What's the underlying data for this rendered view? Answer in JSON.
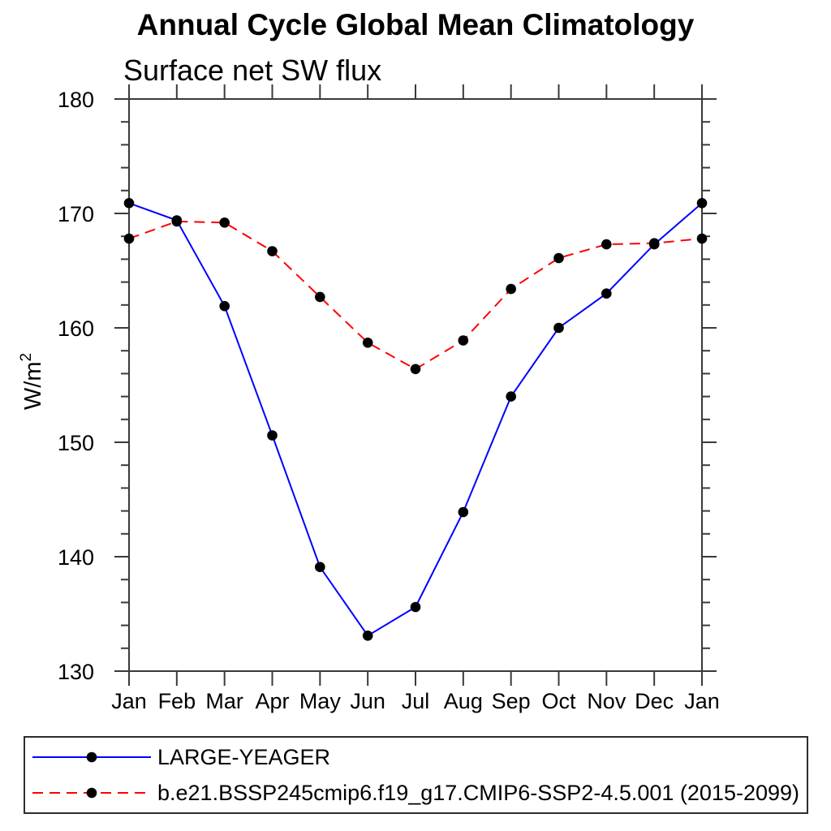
{
  "title": "Annual Cycle Global Mean Climatology",
  "subtitle": "Surface net SW flux",
  "chart_data": {
    "type": "line",
    "title": "Annual Cycle Global Mean Climatology",
    "subtitle": "Surface net SW flux",
    "x": [
      "Jan",
      "Feb",
      "Mar",
      "Apr",
      "May",
      "Jun",
      "Jul",
      "Aug",
      "Sep",
      "Oct",
      "Nov",
      "Dec",
      "Jan"
    ],
    "xlabel": "",
    "ylabel": {
      "base": "W/m",
      "exp": "2"
    },
    "ylim": [
      130,
      180
    ],
    "y_major_ticks": [
      130,
      140,
      150,
      160,
      170,
      180
    ],
    "y_minor_step": 2,
    "grid": false,
    "legend_position": "bottom",
    "frame_color": "#3a3a3a",
    "marker_color": "#000000",
    "series": [
      {
        "name": "LARGE-YEAGER",
        "color": "#0000ff",
        "style": "solid",
        "marker": "circle",
        "values": [
          170.9,
          169.4,
          161.9,
          150.6,
          139.1,
          133.1,
          135.6,
          143.9,
          154.0,
          160.0,
          163.0,
          167.3,
          170.9
        ]
      },
      {
        "name": "b.e21.BSSP245cmip6.f19_g17.CMIP6-SSP2-4.5.001 (2015-2099)",
        "color": "#ff0000",
        "style": "dashed",
        "marker": "circle",
        "values": [
          167.8,
          169.3,
          169.2,
          166.7,
          162.7,
          158.7,
          156.4,
          158.9,
          163.4,
          166.1,
          167.3,
          167.4,
          167.8
        ]
      }
    ]
  }
}
